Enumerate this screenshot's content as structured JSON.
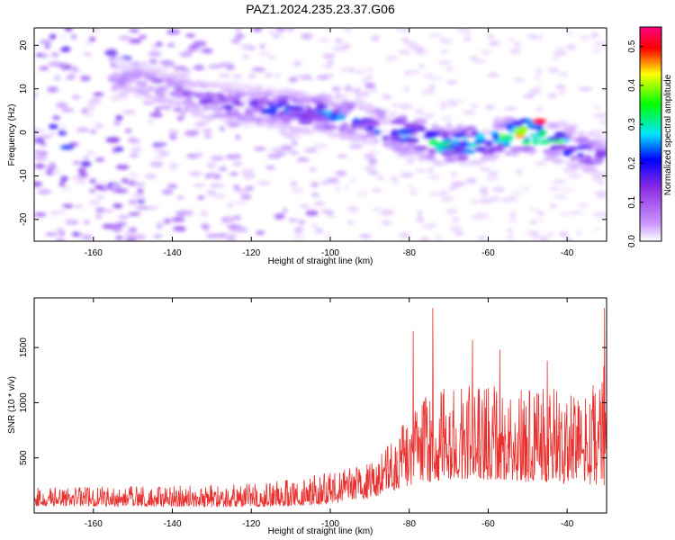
{
  "title": "PAZ1.2024.235.23.37.G06",
  "chart_data": [
    {
      "type": "heatmap",
      "xlabel": "Height of straight line (km)",
      "ylabel": "Frequency (Hz)",
      "xlim": [
        -175,
        -30
      ],
      "ylim": [
        -25,
        24
      ],
      "x_ticks": [
        -160,
        -140,
        -120,
        -100,
        -80,
        -60,
        -40
      ],
      "y_ticks": [
        20,
        10,
        0,
        -10,
        -20
      ],
      "colorbar": {
        "label": "Normalized spectral amplitude",
        "range": [
          0,
          0.55
        ],
        "ticks": [
          "0.0",
          "0.1",
          "0.2",
          "0.3",
          "0.4",
          "0.5"
        ],
        "colors": [
          "#ffffff",
          "#cc99ff",
          "#8a2be2",
          "#0000ff",
          "#00e5ff",
          "#00ff00",
          "#ffff00",
          "#ff0000",
          "#ff0080"
        ]
      },
      "ridge": {
        "x": [
          -150,
          -140,
          -130,
          -120,
          -110,
          -100,
          -90,
          -80,
          -70,
          -60,
          -50,
          -40,
          -30
        ],
        "freq": [
          12,
          10,
          7,
          6,
          5,
          4,
          2,
          -1,
          -3,
          -2,
          0,
          -3,
          -6
        ],
        "peak_amplitude": [
          0.12,
          0.14,
          0.18,
          0.2,
          0.25,
          0.25,
          0.25,
          0.3,
          0.35,
          0.3,
          0.5,
          0.3,
          0.2
        ]
      },
      "max_point": {
        "x": -47,
        "freq": 2.5,
        "amplitude": 0.52
      }
    },
    {
      "type": "line",
      "xlabel": "Height of straight line (km)",
      "ylabel": "SNR (10 * v/v)",
      "xlim": [
        -175,
        -30
      ],
      "ylim": [
        0,
        1950
      ],
      "x_ticks": [
        -160,
        -140,
        -120,
        -100,
        -80,
        -60,
        -40
      ],
      "y_ticks": [
        500,
        1000,
        1500
      ],
      "series_color": "#e8312e",
      "envelope": {
        "x": [
          -175,
          -160,
          -140,
          -125,
          -110,
          -100,
          -90,
          -85,
          -80,
          -75,
          -70,
          -65,
          -60,
          -55,
          -50,
          -45,
          -40,
          -35,
          -30
        ],
        "low": [
          60,
          60,
          55,
          55,
          60,
          80,
          130,
          180,
          250,
          280,
          300,
          300,
          300,
          300,
          280,
          280,
          260,
          250,
          250
        ],
        "high": [
          230,
          240,
          250,
          270,
          300,
          380,
          450,
          650,
          900,
          1100,
          1150,
          1200,
          1200,
          1150,
          1150,
          1150,
          1100,
          1050,
          1400
        ]
      },
      "peaks": [
        {
          "x": -79,
          "y": 1650
        },
        {
          "x": -74,
          "y": 1860
        },
        {
          "x": -64,
          "y": 1570
        },
        {
          "x": -57,
          "y": 1480
        },
        {
          "x": -45,
          "y": 1380
        },
        {
          "x": -30.5,
          "y": 1860
        }
      ]
    }
  ]
}
